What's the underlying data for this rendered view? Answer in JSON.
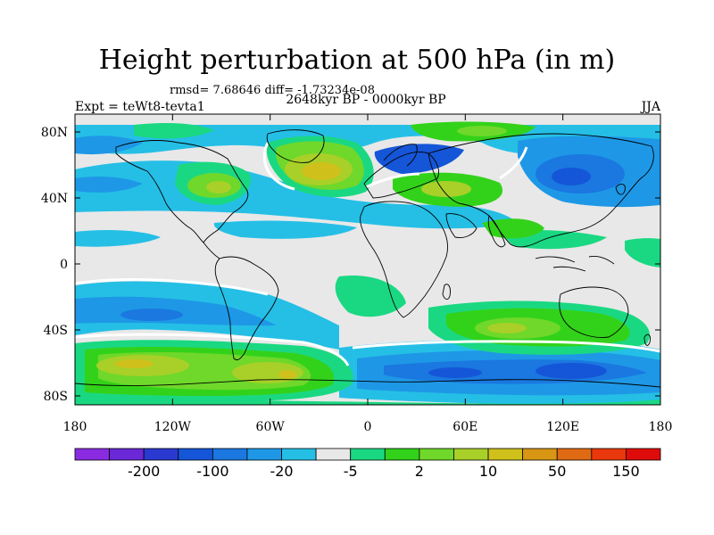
{
  "title": "Height perturbation at 500 hPa (in m)",
  "stats": "rmsd= 7.68646 diff= -1.73234e-08",
  "left_label": "Expt = teWt8-tevta1",
  "center_label": "2648kyr BP - 0000kyr BP",
  "right_label": "JJA",
  "y_ticks": [
    "80N",
    "40N",
    "0",
    "40S",
    "80S"
  ],
  "x_ticks": [
    "180",
    "120W",
    "60W",
    "0",
    "60E",
    "120E",
    "180"
  ],
  "colorbar": {
    "colors": [
      "#8a2be2",
      "#6a28d6",
      "#2a3ad0",
      "#1556d8",
      "#1a78e0",
      "#1e98e6",
      "#25bfe6",
      "#e8e8e8",
      "#1ad882",
      "#33d21a",
      "#6fd82a",
      "#a8d028",
      "#cfc01c",
      "#d89614",
      "#e06a14",
      "#e8380c",
      "#e00c0c"
    ],
    "labels": [
      "-200",
      "-100",
      "-20",
      "-5",
      "2",
      "10",
      "50",
      "150"
    ]
  }
}
